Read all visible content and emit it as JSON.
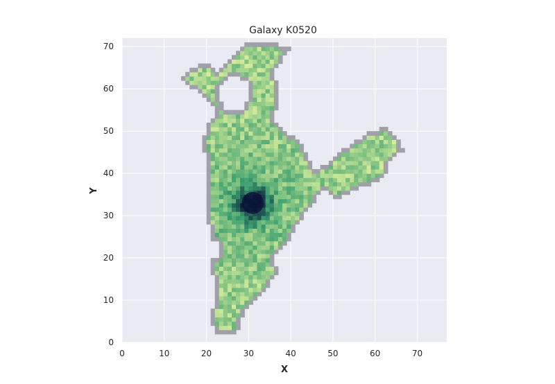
{
  "chart_data": {
    "type": "heatmap",
    "title": "Galaxy K0520",
    "xlabel": "X",
    "ylabel": "Y",
    "xlim": [
      0,
      77
    ],
    "ylim": [
      0,
      72
    ],
    "xticks": [
      0,
      10,
      20,
      30,
      40,
      50,
      60,
      70
    ],
    "yticks": [
      0,
      10,
      20,
      30,
      40,
      50,
      60,
      70
    ],
    "grid": true,
    "background": "#eaeaf2",
    "colormap": "cubehelix-like green (light yellow-green to dark navy)",
    "colors": {
      "low": "#d4ec9b",
      "mid": "#3a9e6e",
      "high": "#0b1438",
      "edge": "#a0a0a8"
    },
    "peak": {
      "x": 31,
      "y": 33
    },
    "cells_note_omitted": true
  }
}
